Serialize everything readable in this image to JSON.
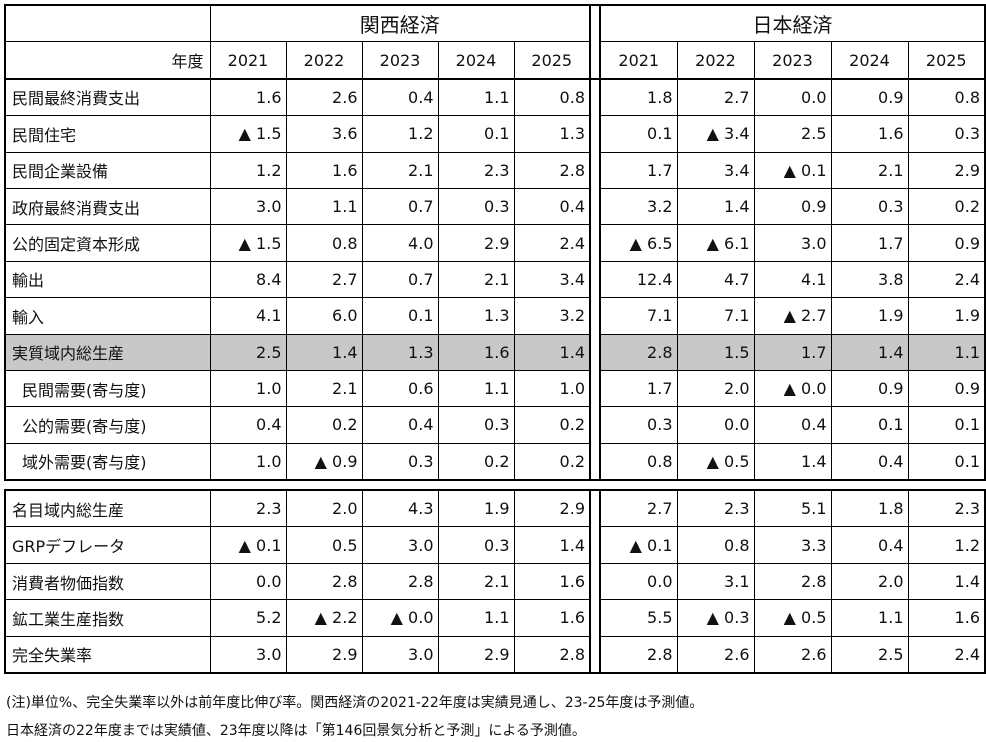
{
  "header": {
    "kansai_title": "関西経済",
    "japan_title": "日本経済",
    "year_label": "年度",
    "years": [
      "2021",
      "2022",
      "2023",
      "2024",
      "2025"
    ]
  },
  "rows": [
    {
      "label": "民間最終消費支出",
      "kansai": [
        "1.6",
        "2.6",
        "0.4",
        "1.1",
        "0.8"
      ],
      "japan": [
        "1.8",
        "2.7",
        "0.0",
        "0.9",
        "0.8"
      ]
    },
    {
      "label": "民間住宅",
      "kansai": [
        "▲ 1.5",
        "3.6",
        "1.2",
        "0.1",
        "1.3"
      ],
      "japan": [
        "0.1",
        "▲ 3.4",
        "2.5",
        "1.6",
        "0.3"
      ]
    },
    {
      "label": "民間企業設備",
      "kansai": [
        "1.2",
        "1.6",
        "2.1",
        "2.3",
        "2.8"
      ],
      "japan": [
        "1.7",
        "3.4",
        "▲ 0.1",
        "2.1",
        "2.9"
      ]
    },
    {
      "label": "政府最終消費支出",
      "kansai": [
        "3.0",
        "1.1",
        "0.7",
        "0.3",
        "0.4"
      ],
      "japan": [
        "3.2",
        "1.4",
        "0.9",
        "0.3",
        "0.2"
      ]
    },
    {
      "label": "公的固定資本形成",
      "kansai": [
        "▲ 1.5",
        "0.8",
        "4.0",
        "2.9",
        "2.4"
      ],
      "japan": [
        "▲ 6.5",
        "▲ 6.1",
        "3.0",
        "1.7",
        "0.9"
      ]
    },
    {
      "label": "輸出",
      "kansai": [
        "8.4",
        "2.7",
        "0.7",
        "2.1",
        "3.4"
      ],
      "japan": [
        "12.4",
        "4.7",
        "4.1",
        "3.8",
        "2.4"
      ]
    },
    {
      "label": "輸入",
      "kansai": [
        "4.1",
        "6.0",
        "0.1",
        "1.3",
        "3.2"
      ],
      "japan": [
        "7.1",
        "7.1",
        "▲ 2.7",
        "1.9",
        "1.9"
      ]
    },
    {
      "label": "実質域内総生産",
      "kansai": [
        "2.5",
        "1.4",
        "1.3",
        "1.6",
        "1.4"
      ],
      "japan": [
        "2.8",
        "1.5",
        "1.7",
        "1.4",
        "1.1"
      ]
    },
    {
      "label": "民間需要(寄与度)",
      "kansai": [
        "1.0",
        "2.1",
        "0.6",
        "1.1",
        "1.0"
      ],
      "japan": [
        "1.7",
        "2.0",
        "▲ 0.0",
        "0.9",
        "0.9"
      ]
    },
    {
      "label": "公的需要(寄与度)",
      "kansai": [
        "0.4",
        "0.2",
        "0.4",
        "0.3",
        "0.2"
      ],
      "japan": [
        "0.3",
        "0.0",
        "0.4",
        "0.1",
        "0.1"
      ]
    },
    {
      "label": "域外需要(寄与度)",
      "kansai": [
        "1.0",
        "▲ 0.9",
        "0.3",
        "0.2",
        "0.2"
      ],
      "japan": [
        "0.8",
        "▲ 0.5",
        "1.4",
        "0.4",
        "0.1"
      ]
    },
    {
      "label": "名目域内総生産",
      "kansai": [
        "2.3",
        "2.0",
        "4.3",
        "1.9",
        "2.9"
      ],
      "japan": [
        "2.7",
        "2.3",
        "5.1",
        "1.8",
        "2.3"
      ]
    },
    {
      "label": "GRPデフレータ",
      "kansai": [
        "▲ 0.1",
        "0.5",
        "3.0",
        "0.3",
        "1.4"
      ],
      "japan": [
        "▲ 0.1",
        "0.8",
        "3.3",
        "0.4",
        "1.2"
      ]
    },
    {
      "label": "消費者物価指数",
      "kansai": [
        "0.0",
        "2.8",
        "2.8",
        "2.1",
        "1.6"
      ],
      "japan": [
        "0.0",
        "3.1",
        "2.8",
        "2.0",
        "1.4"
      ]
    },
    {
      "label": "鉱工業生産指数",
      "kansai": [
        "5.2",
        "▲ 2.2",
        "▲ 0.0",
        "1.1",
        "1.6"
      ],
      "japan": [
        "5.5",
        "▲ 0.3",
        "▲ 0.5",
        "1.1",
        "1.6"
      ]
    },
    {
      "label": "完全失業率",
      "kansai": [
        "3.0",
        "2.9",
        "3.0",
        "2.9",
        "2.8"
      ],
      "japan": [
        "2.8",
        "2.6",
        "2.6",
        "2.5",
        "2.4"
      ]
    }
  ],
  "notes": [
    "(注)単位%、完全失業率以外は前年度比伸び率。関西経済の2021-22年度は実績見通し、23-25年度は予測値。",
    "日本経済の22年度までは実績値、23年度以降は「第146回景気分析と予測」による予測値。"
  ],
  "highlight_color": "#c8c8c8"
}
